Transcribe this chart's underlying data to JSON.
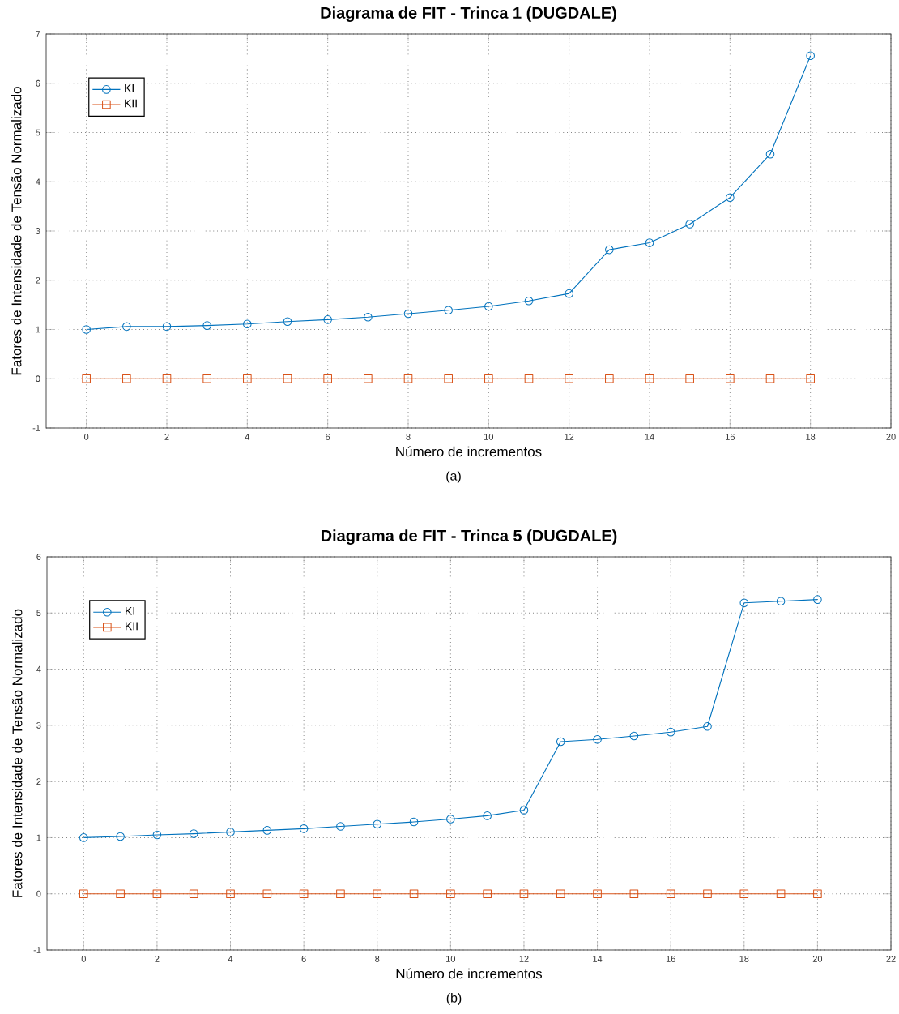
{
  "chart_data": [
    {
      "type": "line",
      "title": "Diagrama de FIT - Trinca 1 (DUGDALE)",
      "xlabel": "Número de incrementos",
      "ylabel": "Fatores de Intensidade de Tensão Normalizado",
      "annotations": [
        "(a)"
      ],
      "x": [
        0,
        1,
        2,
        3,
        4,
        5,
        6,
        7,
        8,
        9,
        10,
        11,
        12,
        13,
        14,
        15,
        16,
        17,
        18
      ],
      "series": [
        {
          "name": "KI",
          "color": "#0072bd",
          "marker": "circle",
          "values": [
            1.0,
            1.06,
            1.06,
            1.08,
            1.11,
            1.16,
            1.2,
            1.25,
            1.32,
            1.39,
            1.47,
            1.58,
            1.73,
            2.62,
            2.76,
            3.14,
            3.68,
            4.56,
            6.56
          ]
        },
        {
          "name": "KII",
          "color": "#d95319",
          "marker": "square",
          "values": [
            0,
            0,
            0,
            0,
            0,
            0,
            0,
            0,
            0,
            0,
            0,
            0,
            0,
            0,
            0,
            0,
            0,
            0,
            0
          ]
        }
      ],
      "xlim": [
        -1,
        20
      ],
      "xticks": [
        0,
        2,
        4,
        6,
        8,
        10,
        12,
        14,
        16,
        18,
        20
      ],
      "ylim": [
        -1,
        7
      ],
      "yticks": [
        -1,
        0,
        1,
        2,
        3,
        4,
        5,
        6,
        7
      ],
      "grid": true,
      "legend": "top left",
      "line_style": "solid"
    },
    {
      "type": "line",
      "title": "Diagrama de FIT - Trinca 5 (DUGDALE)",
      "xlabel": "Número de incrementos",
      "ylabel": "Fatores de Intensidade de Tensão Normalizado",
      "annotations": [
        "(b)"
      ],
      "x": [
        0,
        1,
        2,
        3,
        4,
        5,
        6,
        7,
        8,
        9,
        10,
        11,
        12,
        13,
        14,
        15,
        16,
        17,
        18,
        19,
        20
      ],
      "series": [
        {
          "name": "KI",
          "color": "#0072bd",
          "marker": "circle",
          "values": [
            1.0,
            1.02,
            1.05,
            1.07,
            1.1,
            1.13,
            1.16,
            1.2,
            1.24,
            1.28,
            1.33,
            1.39,
            1.49,
            2.71,
            2.75,
            2.81,
            2.88,
            2.98,
            5.18,
            5.21,
            5.24
          ]
        },
        {
          "name": "KII",
          "color": "#d95319",
          "marker": "square",
          "values": [
            0,
            0,
            0,
            0,
            0,
            0,
            0,
            0,
            0,
            0,
            0,
            0,
            0,
            0,
            0,
            0,
            0,
            0,
            0,
            0,
            0
          ]
        }
      ],
      "xlim": [
        -1,
        22
      ],
      "xticks": [
        0,
        2,
        4,
        6,
        8,
        10,
        12,
        14,
        16,
        18,
        20,
        22
      ],
      "ylim": [
        -1,
        6
      ],
      "yticks": [
        -1,
        0,
        1,
        2,
        3,
        4,
        5,
        6
      ],
      "grid": true,
      "legend": "top left",
      "line_style": "solid"
    }
  ]
}
